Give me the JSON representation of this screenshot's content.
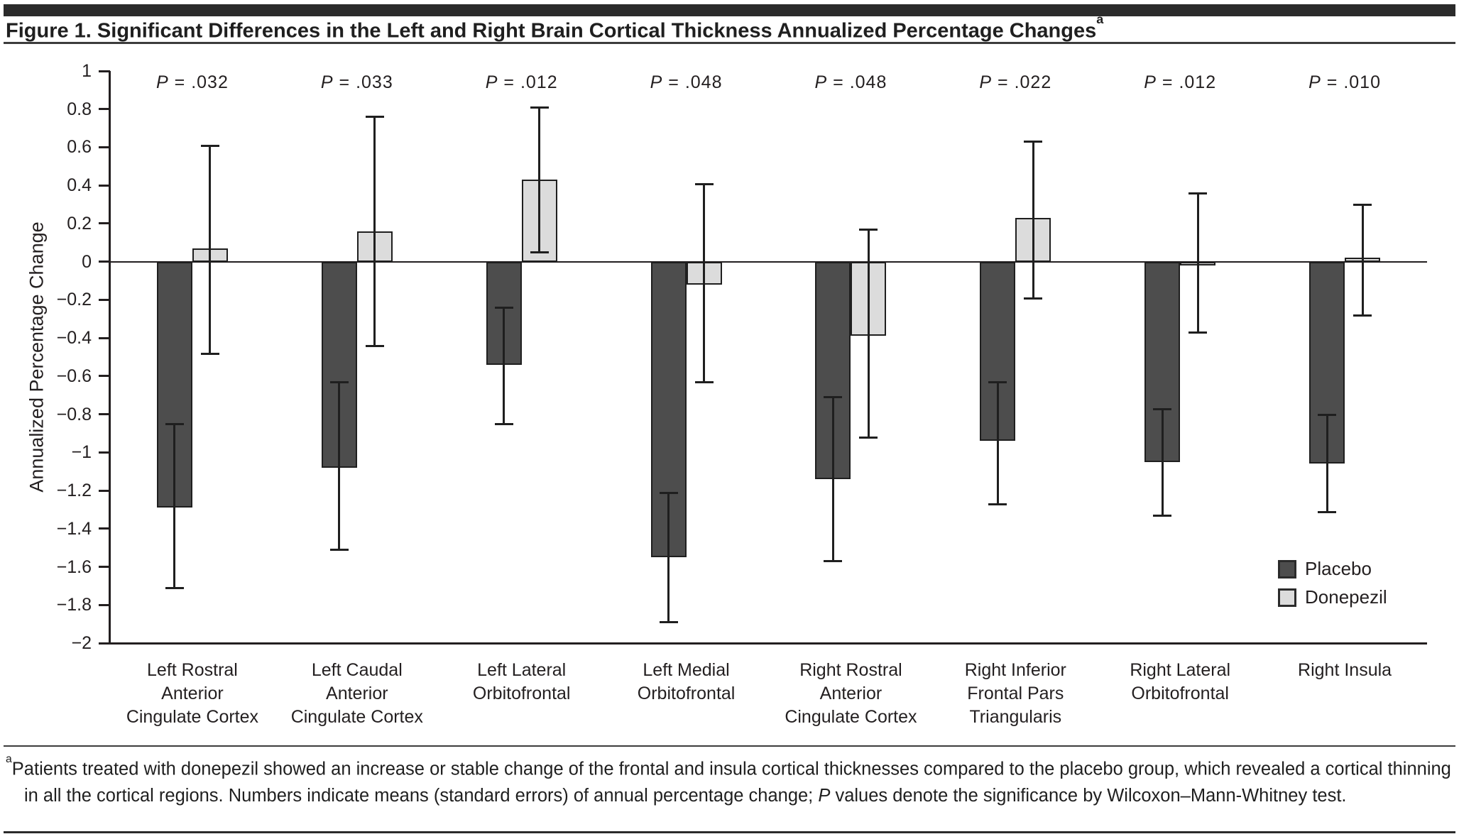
{
  "figure": {
    "title": "Figure 1. Significant Differences in the Left and Right Brain Cortical Thickness Annualized Percentage Changes",
    "title_superscript": "a",
    "footnote_superscript": "a",
    "footnote_before_p": "Patients treated with donepezil showed an increase or stable change of the frontal and insula cortical thicknesses compared to the placebo group, which revealed a cortical thinning in all the cortical regions. Numbers indicate means (standard errors) of annual percentage change; ",
    "footnote_p": "P",
    "footnote_after_p": " values denote the significance by Wilcoxon–Mann-Whitney test."
  },
  "chart_data": {
    "type": "bar",
    "title": "Significant Differences in the Left and Right Brain Cortical Thickness Annualized Percentage Changes",
    "xlabel": "",
    "ylabel": "Annualized Percentage Change",
    "ylim": [
      -2,
      1
    ],
    "ytick_step": 0.2,
    "grid": false,
    "legend_position": "right",
    "p_prefix": "P",
    "p_eq": " = ",
    "p_values": [
      ".032",
      ".033",
      ".012",
      ".048",
      ".048",
      ".022",
      ".012",
      ".010"
    ],
    "yticks": [
      {
        "v": 1,
        "label": "1"
      },
      {
        "v": 0.8,
        "label": "0.8"
      },
      {
        "v": 0.6,
        "label": "0.6"
      },
      {
        "v": 0.4,
        "label": "0.4"
      },
      {
        "v": 0.2,
        "label": "0.2"
      },
      {
        "v": 0,
        "label": "0"
      },
      {
        "v": -0.2,
        "label": "−0.2"
      },
      {
        "v": -0.4,
        "label": "−0.4"
      },
      {
        "v": -0.6,
        "label": "−0.6"
      },
      {
        "v": -0.8,
        "label": "−0.8"
      },
      {
        "v": -1,
        "label": "−1"
      },
      {
        "v": -1.2,
        "label": "−1.2"
      },
      {
        "v": -1.4,
        "label": "−1.4"
      },
      {
        "v": -1.6,
        "label": "−1.6"
      },
      {
        "v": -1.8,
        "label": "−1.8"
      },
      {
        "v": -2,
        "label": "−2"
      }
    ],
    "categories": [
      [
        "Left Rostral",
        "Anterior",
        "Cingulate Cortex"
      ],
      [
        "Left Caudal",
        "Anterior",
        "Cingulate Cortex"
      ],
      [
        "Left Lateral",
        "Orbitofrontal"
      ],
      [
        "Left Medial",
        "Orbitofrontal"
      ],
      [
        "Right Rostral",
        "Anterior",
        "Cingulate Cortex"
      ],
      [
        "Right Inferior",
        "Frontal Pars",
        "Triangularis"
      ],
      [
        "Right Lateral",
        "Orbitofrontal"
      ],
      [
        "Right Insula"
      ]
    ],
    "legend": [
      {
        "name": "Placebo",
        "color": "#4d4d4d"
      },
      {
        "name": "Donepezil",
        "color": "#dcdcdc"
      }
    ],
    "series": [
      {
        "name": "Placebo",
        "color": "#4d4d4d",
        "values": [
          -1.29,
          -1.08,
          -0.54,
          -1.55,
          -1.14,
          -0.94,
          -1.05,
          -1.06
        ],
        "err_hi": [
          -0.85,
          -0.63,
          -0.24,
          -1.21,
          -0.71,
          -0.63,
          -0.77,
          -0.8
        ],
        "err_lo": [
          -1.71,
          -1.51,
          -0.85,
          -1.89,
          -1.57,
          -1.27,
          -1.33,
          -1.31
        ]
      },
      {
        "name": "Donepezil",
        "color": "#dcdcdc",
        "values": [
          0.07,
          0.16,
          0.43,
          -0.12,
          -0.39,
          0.23,
          -0.02,
          0.02
        ],
        "err_hi": [
          0.61,
          0.76,
          0.81,
          0.41,
          0.17,
          0.63,
          0.36,
          0.3
        ],
        "err_lo": [
          -0.48,
          -0.44,
          0.05,
          -0.63,
          -0.92,
          -0.19,
          -0.37,
          -0.28
        ]
      }
    ]
  }
}
